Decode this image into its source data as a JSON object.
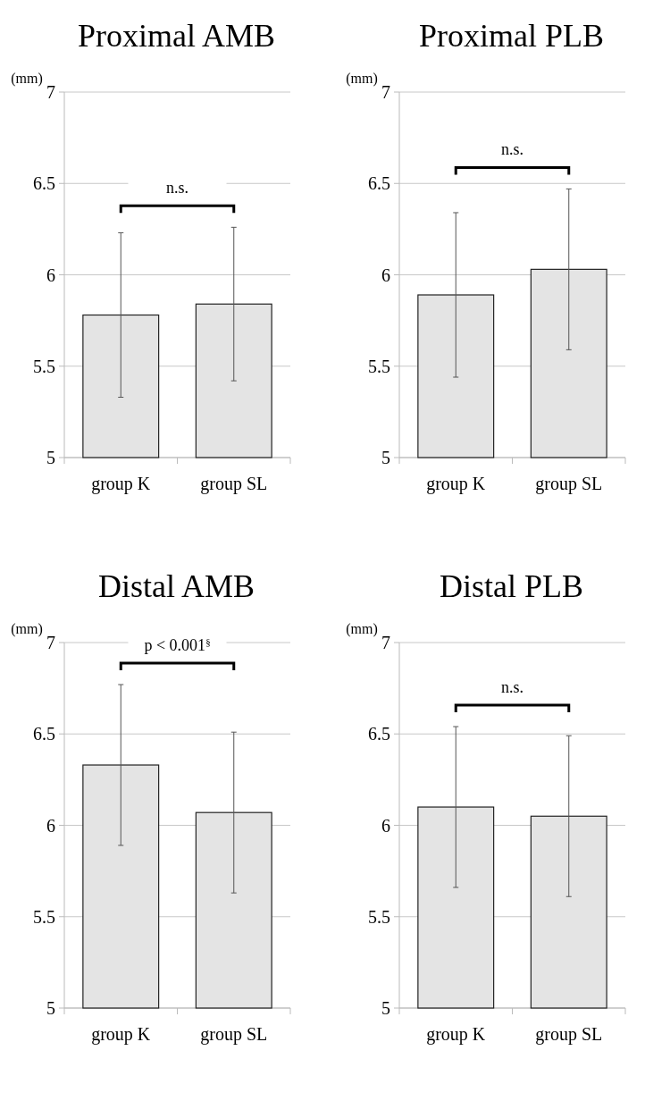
{
  "chart_data": [
    {
      "type": "bar",
      "title": "Proximal AMB",
      "ylabel": "(mm)",
      "categories": [
        "group K",
        "group SL"
      ],
      "values": [
        5.78,
        5.84
      ],
      "errors": [
        0.45,
        0.42
      ],
      "color": "#e4e4e4",
      "ylim": [
        5,
        7
      ],
      "yticks": [
        5,
        5.5,
        6,
        6.5,
        7
      ],
      "grid": "y",
      "annotations": [
        "n.s."
      ]
    },
    {
      "type": "bar",
      "title": "Proximal PLB",
      "ylabel": "(mm)",
      "categories": [
        "group K",
        "group SL"
      ],
      "values": [
        5.89,
        6.03
      ],
      "errors": [
        0.45,
        0.44
      ],
      "color": "#e4e4e4",
      "ylim": [
        5,
        7
      ],
      "yticks": [
        5,
        5.5,
        6,
        6.5,
        7
      ],
      "grid": "y",
      "annotations": [
        "n.s."
      ]
    },
    {
      "type": "bar",
      "title": "Distal AMB",
      "ylabel": "(mm)",
      "categories": [
        "group K",
        "group SL"
      ],
      "values": [
        6.33,
        6.07
      ],
      "errors": [
        0.44,
        0.44
      ],
      "color": "#e4e4e4",
      "ylim": [
        5,
        7
      ],
      "yticks": [
        5,
        5.5,
        6,
        6.5,
        7
      ],
      "grid": "y",
      "annotations": [
        "p < 0.001$^{§}$"
      ]
    },
    {
      "type": "bar",
      "title": "Distal PLB",
      "ylabel": "(mm)",
      "categories": [
        "group K",
        "group SL"
      ],
      "values": [
        6.1,
        6.05
      ],
      "errors": [
        0.44,
        0.44
      ],
      "color": "#e4e4e4",
      "ylim": [
        5,
        7
      ],
      "yticks": [
        5,
        5.5,
        6,
        6.5,
        7
      ],
      "grid": "y",
      "annotations": [
        "n.s."
      ]
    }
  ]
}
